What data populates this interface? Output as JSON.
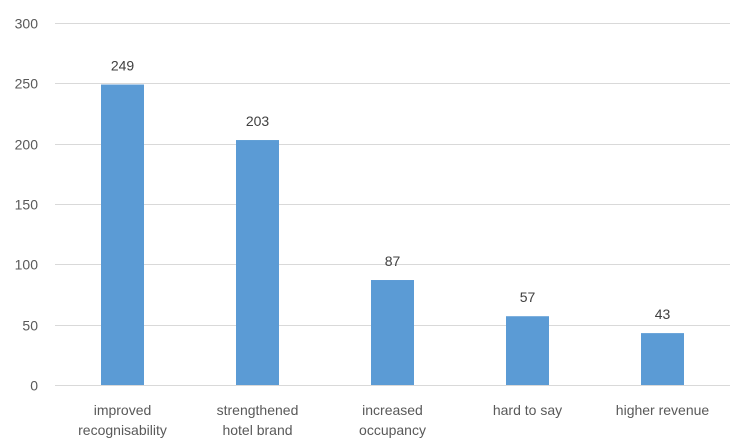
{
  "chart_data": {
    "type": "bar",
    "categories": [
      [
        "improved",
        "recognisability"
      ],
      [
        "strengthened",
        "hotel brand"
      ],
      [
        "increased",
        "occupancy"
      ],
      [
        "hard to say"
      ],
      [
        "higher revenue"
      ]
    ],
    "values": [
      249,
      203,
      87,
      57,
      43
    ],
    "data_labels": [
      "249",
      "203",
      "87",
      "57",
      "43"
    ],
    "ylim": [
      0,
      300
    ],
    "yticks": [
      0,
      50,
      100,
      150,
      200,
      250,
      300
    ],
    "grid": true,
    "legend": "none",
    "bar_color": "#5b9bd5",
    "grid_color": "#d9d9d9"
  }
}
